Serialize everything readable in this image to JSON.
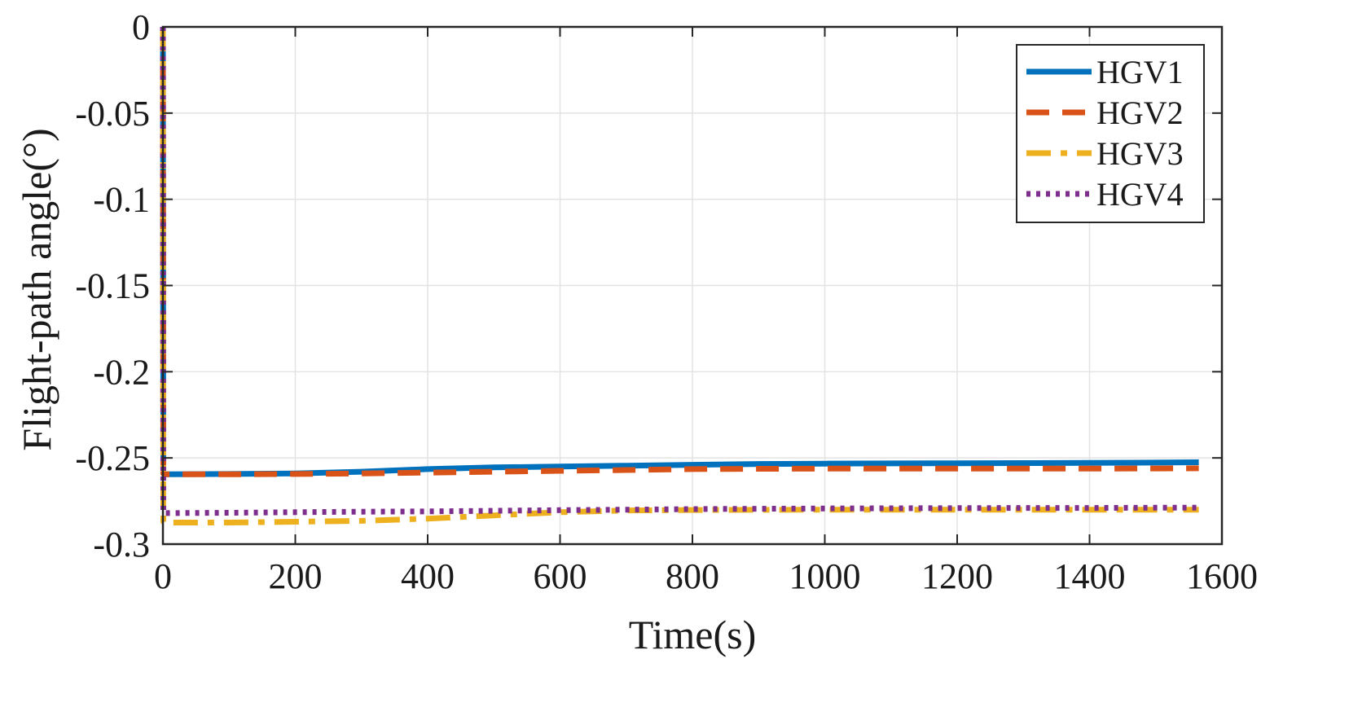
{
  "chart_data": {
    "type": "line",
    "title": "",
    "xlabel": "Time(s)",
    "ylabel": "Flight-path angle(°)",
    "xlim": [
      0,
      1600
    ],
    "ylim": [
      -0.3,
      0
    ],
    "xticks": [
      0,
      200,
      400,
      600,
      800,
      1000,
      1200,
      1400,
      1600
    ],
    "yticks": [
      0,
      -0.05,
      -0.1,
      -0.15,
      -0.2,
      -0.25,
      -0.3
    ],
    "xtick_labels": [
      "0",
      "200",
      "400",
      "600",
      "800",
      "1000",
      "1200",
      "1400",
      "1600"
    ],
    "ytick_labels": [
      "0",
      "-0.05",
      "-0.1",
      "-0.15",
      "-0.2",
      "-0.25",
      "-0.3"
    ],
    "grid": true,
    "legend_position": "top-right",
    "series": [
      {
        "name": "HGV1",
        "color": "#0072BD",
        "style": "solid",
        "x": [
          0,
          0.3,
          0.6,
          5,
          100,
          200,
          300,
          400,
          500,
          600,
          700,
          800,
          900,
          1000,
          1100,
          1200,
          1300,
          1400,
          1500,
          1565
        ],
        "y": [
          0,
          -0.1,
          -0.259,
          -0.2595,
          -0.2593,
          -0.259,
          -0.258,
          -0.2565,
          -0.2555,
          -0.255,
          -0.2545,
          -0.254,
          -0.2535,
          -0.2533,
          -0.2532,
          -0.2531,
          -0.253,
          -0.2529,
          -0.2527,
          -0.2525
        ]
      },
      {
        "name": "HGV2",
        "color": "#D95319",
        "style": "dashed",
        "x": [
          0,
          0.3,
          0.6,
          5,
          100,
          200,
          300,
          400,
          500,
          600,
          700,
          800,
          900,
          1000,
          1100,
          1200,
          1300,
          1400,
          1500,
          1565
        ],
        "y": [
          0,
          -0.1,
          -0.259,
          -0.2595,
          -0.2595,
          -0.2593,
          -0.259,
          -0.2585,
          -0.258,
          -0.2575,
          -0.257,
          -0.2565,
          -0.2563,
          -0.2562,
          -0.2562,
          -0.2562,
          -0.2562,
          -0.2562,
          -0.2561,
          -0.256
        ]
      },
      {
        "name": "HGV3",
        "color": "#EDB120",
        "style": "dash-dot",
        "x": [
          0,
          0.3,
          0.6,
          5,
          100,
          200,
          300,
          400,
          500,
          600,
          700,
          800,
          900,
          1000,
          1100,
          1200,
          1300,
          1400,
          1500,
          1565
        ],
        "y": [
          0,
          -0.1,
          -0.287,
          -0.2875,
          -0.2875,
          -0.287,
          -0.2865,
          -0.2852,
          -0.2833,
          -0.2815,
          -0.2805,
          -0.2802,
          -0.2801,
          -0.28,
          -0.28,
          -0.28,
          -0.28,
          -0.28,
          -0.28,
          -0.28
        ]
      },
      {
        "name": "HGV4",
        "color": "#7E2F8E",
        "style": "dotted",
        "x": [
          0,
          0.3,
          0.6,
          5,
          100,
          200,
          300,
          400,
          500,
          600,
          700,
          800,
          900,
          1000,
          1100,
          1200,
          1300,
          1400,
          1500,
          1565
        ],
        "y": [
          0,
          -0.1,
          -0.282,
          -0.282,
          -0.2818,
          -0.2815,
          -0.2812,
          -0.281,
          -0.2807,
          -0.2803,
          -0.28,
          -0.2797,
          -0.2795,
          -0.2793,
          -0.2792,
          -0.2791,
          -0.279,
          -0.279,
          -0.2789,
          -0.2789
        ]
      }
    ]
  }
}
